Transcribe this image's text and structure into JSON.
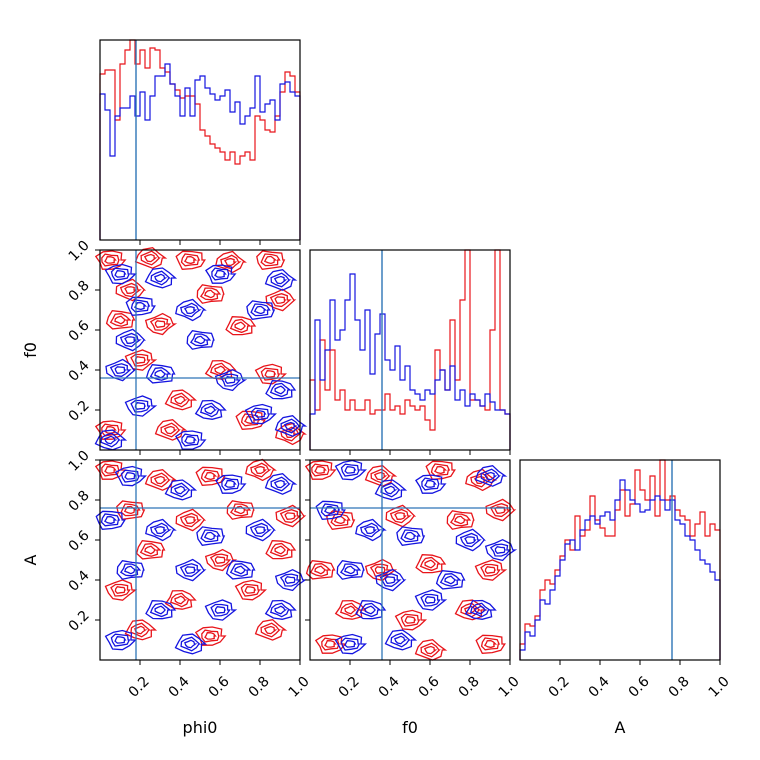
{
  "chart_data": {
    "type": "corner",
    "parameters": [
      "phi0",
      "f0",
      "A"
    ],
    "axis_range": [
      0,
      1
    ],
    "ticks": [
      0.2,
      0.4,
      0.6,
      0.8,
      1.0
    ],
    "tick_labels": [
      "0.2",
      "0.4",
      "0.6",
      "0.8",
      "1.0"
    ],
    "truths": {
      "phi0": 0.18,
      "f0": 0.36,
      "A": 0.76
    },
    "series_colors": {
      "red": "#e8141a",
      "blue": "#1414e0",
      "truth": "#2e75b6"
    },
    "histograms": {
      "phi0": {
        "bins": 40,
        "red": [
          0.83,
          0.85,
          0.85,
          0.6,
          0.88,
          0.95,
          1.0,
          0.88,
          0.95,
          0.86,
          0.96,
          0.95,
          0.86,
          0.84,
          0.78,
          0.75,
          0.71,
          0.72,
          0.72,
          0.68,
          0.55,
          0.52,
          0.48,
          0.46,
          0.44,
          0.4,
          0.44,
          0.38,
          0.42,
          0.44,
          0.4,
          0.62,
          0.6,
          0.55,
          0.54,
          0.62,
          0.74,
          0.84,
          0.82,
          0.74
        ],
        "blue": [
          0.73,
          0.65,
          0.42,
          0.62,
          0.66,
          0.66,
          0.72,
          0.62,
          0.74,
          0.6,
          0.72,
          0.82,
          0.82,
          0.88,
          0.78,
          0.72,
          0.62,
          0.76,
          0.62,
          0.8,
          0.82,
          0.76,
          0.73,
          0.7,
          0.72,
          0.75,
          0.64,
          0.69,
          0.58,
          0.62,
          0.66,
          0.82,
          0.64,
          0.68,
          0.7,
          0.6,
          0.78,
          0.79,
          0.74,
          0.72
        ]
      },
      "f0": {
        "bins": 40,
        "red": [
          0.35,
          0.2,
          0.55,
          0.3,
          0.5,
          0.25,
          0.3,
          0.2,
          0.25,
          0.2,
          0.2,
          0.25,
          0.18,
          0.2,
          0.2,
          0.28,
          0.2,
          0.22,
          0.18,
          0.25,
          0.22,
          0.2,
          0.22,
          0.15,
          0.1,
          0.5,
          0.4,
          0.3,
          0.65,
          0.35,
          0.75,
          1.0,
          0.25,
          0.25,
          0.22,
          0.2,
          0.6,
          1.0,
          0.2,
          0.18
        ],
        "blue": [
          0.18,
          0.65,
          0.35,
          0.5,
          0.75,
          0.55,
          0.6,
          0.75,
          0.88,
          0.65,
          0.5,
          0.7,
          0.38,
          0.58,
          0.68,
          0.45,
          0.4,
          0.52,
          0.35,
          0.42,
          0.3,
          0.28,
          0.25,
          0.3,
          0.28,
          0.35,
          0.4,
          0.3,
          0.42,
          0.25,
          0.3,
          0.22,
          0.28,
          0.25,
          0.22,
          0.28,
          0.24,
          0.2,
          0.2,
          0.18
        ]
      },
      "A": {
        "bins": 40,
        "red": [
          0.08,
          0.18,
          0.17,
          0.22,
          0.35,
          0.4,
          0.38,
          0.45,
          0.52,
          0.6,
          0.55,
          0.72,
          0.62,
          0.65,
          0.82,
          0.7,
          0.66,
          0.62,
          0.62,
          0.75,
          0.85,
          0.72,
          0.78,
          0.95,
          0.85,
          0.8,
          0.92,
          0.72,
          1.0,
          0.8,
          0.82,
          0.75,
          0.72,
          0.7,
          0.62,
          0.68,
          0.74,
          0.62,
          0.68,
          0.65
        ],
        "blue": [
          0.05,
          0.14,
          0.12,
          0.2,
          0.3,
          0.28,
          0.35,
          0.42,
          0.5,
          0.58,
          0.6,
          0.55,
          0.65,
          0.7,
          0.72,
          0.68,
          0.72,
          0.74,
          0.7,
          0.8,
          0.9,
          0.85,
          0.8,
          0.78,
          0.74,
          0.75,
          0.8,
          0.82,
          0.8,
          0.75,
          0.8,
          0.7,
          0.68,
          0.62,
          0.6,
          0.55,
          0.5,
          0.48,
          0.44,
          0.4
        ]
      }
    },
    "contours": {
      "f0_vs_phi0": {
        "red": [
          [
            0.05,
            0.95
          ],
          [
            0.25,
            0.96
          ],
          [
            0.45,
            0.95
          ],
          [
            0.65,
            0.94
          ],
          [
            0.85,
            0.95
          ],
          [
            0.15,
            0.8
          ],
          [
            0.55,
            0.78
          ],
          [
            0.9,
            0.75
          ],
          [
            0.1,
            0.65
          ],
          [
            0.3,
            0.63
          ],
          [
            0.7,
            0.62
          ],
          [
            0.2,
            0.45
          ],
          [
            0.6,
            0.4
          ],
          [
            0.85,
            0.38
          ],
          [
            0.4,
            0.25
          ],
          [
            0.05,
            0.1
          ],
          [
            0.35,
            0.1
          ],
          [
            0.75,
            0.15
          ],
          [
            0.95,
            0.08
          ]
        ],
        "blue": [
          [
            0.1,
            0.88
          ],
          [
            0.3,
            0.86
          ],
          [
            0.6,
            0.88
          ],
          [
            0.9,
            0.85
          ],
          [
            0.2,
            0.72
          ],
          [
            0.45,
            0.7
          ],
          [
            0.8,
            0.7
          ],
          [
            0.15,
            0.55
          ],
          [
            0.5,
            0.55
          ],
          [
            0.1,
            0.4
          ],
          [
            0.3,
            0.38
          ],
          [
            0.65,
            0.35
          ],
          [
            0.9,
            0.3
          ],
          [
            0.2,
            0.22
          ],
          [
            0.55,
            0.2
          ],
          [
            0.8,
            0.18
          ],
          [
            0.05,
            0.05
          ],
          [
            0.45,
            0.05
          ],
          [
            0.95,
            0.12
          ]
        ]
      },
      "A_vs_phi0": {
        "red": [
          [
            0.05,
            0.95
          ],
          [
            0.3,
            0.9
          ],
          [
            0.55,
            0.92
          ],
          [
            0.8,
            0.95
          ],
          [
            0.15,
            0.75
          ],
          [
            0.45,
            0.7
          ],
          [
            0.7,
            0.75
          ],
          [
            0.95,
            0.72
          ],
          [
            0.25,
            0.55
          ],
          [
            0.6,
            0.5
          ],
          [
            0.9,
            0.55
          ],
          [
            0.1,
            0.35
          ],
          [
            0.4,
            0.3
          ],
          [
            0.75,
            0.35
          ],
          [
            0.2,
            0.15
          ],
          [
            0.55,
            0.12
          ],
          [
            0.85,
            0.15
          ]
        ],
        "blue": [
          [
            0.15,
            0.92
          ],
          [
            0.4,
            0.85
          ],
          [
            0.65,
            0.88
          ],
          [
            0.9,
            0.88
          ],
          [
            0.05,
            0.7
          ],
          [
            0.3,
            0.65
          ],
          [
            0.55,
            0.62
          ],
          [
            0.8,
            0.65
          ],
          [
            0.15,
            0.45
          ],
          [
            0.45,
            0.45
          ],
          [
            0.7,
            0.45
          ],
          [
            0.95,
            0.4
          ],
          [
            0.3,
            0.25
          ],
          [
            0.6,
            0.25
          ],
          [
            0.9,
            0.25
          ],
          [
            0.1,
            0.1
          ],
          [
            0.45,
            0.08
          ]
        ]
      },
      "A_vs_f0": {
        "red": [
          [
            0.05,
            0.95
          ],
          [
            0.35,
            0.92
          ],
          [
            0.65,
            0.95
          ],
          [
            0.85,
            0.9
          ],
          [
            0.15,
            0.7
          ],
          [
            0.45,
            0.72
          ],
          [
            0.75,
            0.7
          ],
          [
            0.95,
            0.75
          ],
          [
            0.05,
            0.45
          ],
          [
            0.35,
            0.45
          ],
          [
            0.6,
            0.48
          ],
          [
            0.9,
            0.45
          ],
          [
            0.2,
            0.25
          ],
          [
            0.5,
            0.2
          ],
          [
            0.8,
            0.25
          ],
          [
            0.1,
            0.08
          ],
          [
            0.6,
            0.05
          ],
          [
            0.9,
            0.08
          ]
        ],
        "blue": [
          [
            0.2,
            0.95
          ],
          [
            0.4,
            0.85
          ],
          [
            0.6,
            0.88
          ],
          [
            0.9,
            0.92
          ],
          [
            0.1,
            0.75
          ],
          [
            0.3,
            0.65
          ],
          [
            0.5,
            0.62
          ],
          [
            0.8,
            0.6
          ],
          [
            0.2,
            0.45
          ],
          [
            0.4,
            0.4
          ],
          [
            0.7,
            0.4
          ],
          [
            0.95,
            0.55
          ],
          [
            0.3,
            0.25
          ],
          [
            0.6,
            0.3
          ],
          [
            0.85,
            0.25
          ],
          [
            0.2,
            0.08
          ],
          [
            0.45,
            0.1
          ]
        ]
      }
    },
    "grid": false,
    "legend": "none"
  }
}
